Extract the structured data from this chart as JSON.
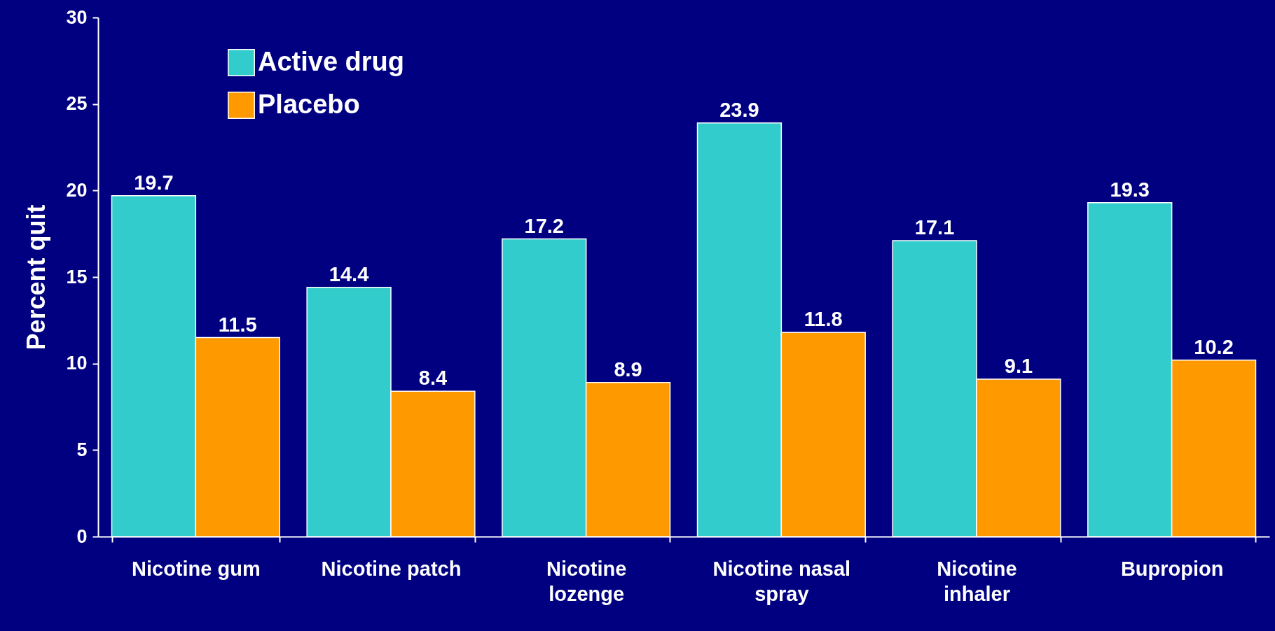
{
  "chart_data": {
    "type": "bar",
    "ylabel": "Percent quit",
    "categories": [
      "Nicotine gum",
      "Nicotine patch",
      "Nicotine lozenge",
      "Nicotine nasal spray",
      "Nicotine inhaler",
      "Bupropion"
    ],
    "series": [
      {
        "name": "Active drug",
        "color": "#33cccc",
        "values": [
          19.7,
          14.4,
          17.2,
          23.9,
          17.1,
          19.3
        ]
      },
      {
        "name": "Placebo",
        "color": "#ff9900",
        "values": [
          11.5,
          8.4,
          8.9,
          11.8,
          9.1,
          10.2
        ]
      }
    ],
    "ylim": [
      0,
      30
    ],
    "yticks": [
      0,
      5,
      10,
      15,
      20,
      25,
      30
    ],
    "grid": false,
    "legend": "top left",
    "data_labels": true
  }
}
